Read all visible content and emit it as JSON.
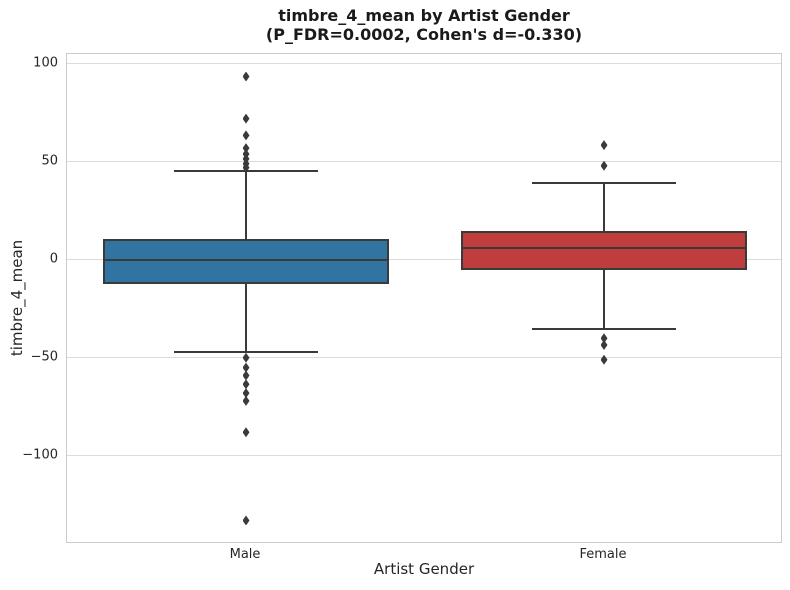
{
  "chart_data": {
    "type": "boxplot",
    "title": "timbre_4_mean by Artist Gender",
    "subtitle": "(P_FDR=0.0002, Cohen's d=-0.330)",
    "stats": {
      "p_fdr": "0.0002",
      "cohens_d": "-0.330"
    },
    "xlabel": "Artist Gender",
    "ylabel": "timbre_4_mean",
    "categories": [
      "Male",
      "Female"
    ],
    "ylim": [
      -145,
      105
    ],
    "yticks": [
      {
        "value": 100,
        "label": "100"
      },
      {
        "value": 50,
        "label": "50"
      },
      {
        "value": 0,
        "label": "0"
      },
      {
        "value": -50,
        "label": "−50"
      },
      {
        "value": -100,
        "label": "−100"
      }
    ],
    "grid": true,
    "legend": null,
    "series": [
      {
        "category": "Male",
        "box_color": "#3274A1",
        "whisker_low": -47,
        "q1": -12.5,
        "median": 0,
        "q3": 10.5,
        "whisker_high": 45.5,
        "outliers": [
          93.5,
          72,
          63.5,
          57,
          54,
          51.5,
          49,
          47,
          -50,
          -55,
          -59,
          -63.5,
          -68,
          -72,
          -88,
          -133
        ]
      },
      {
        "category": "Female",
        "box_color": "#C03D3E",
        "whisker_low": -35.5,
        "q1": -5,
        "median": 6,
        "q3": 14.5,
        "whisker_high": 39,
        "outliers": [
          58.5,
          48,
          -40,
          -43.5,
          -51
        ]
      }
    ],
    "colors": {
      "line": "#3A3A3A",
      "grid": "#DBDBDB",
      "spine": "#CCCCCC",
      "text": "#262626",
      "background": "#FFFFFF"
    }
  }
}
